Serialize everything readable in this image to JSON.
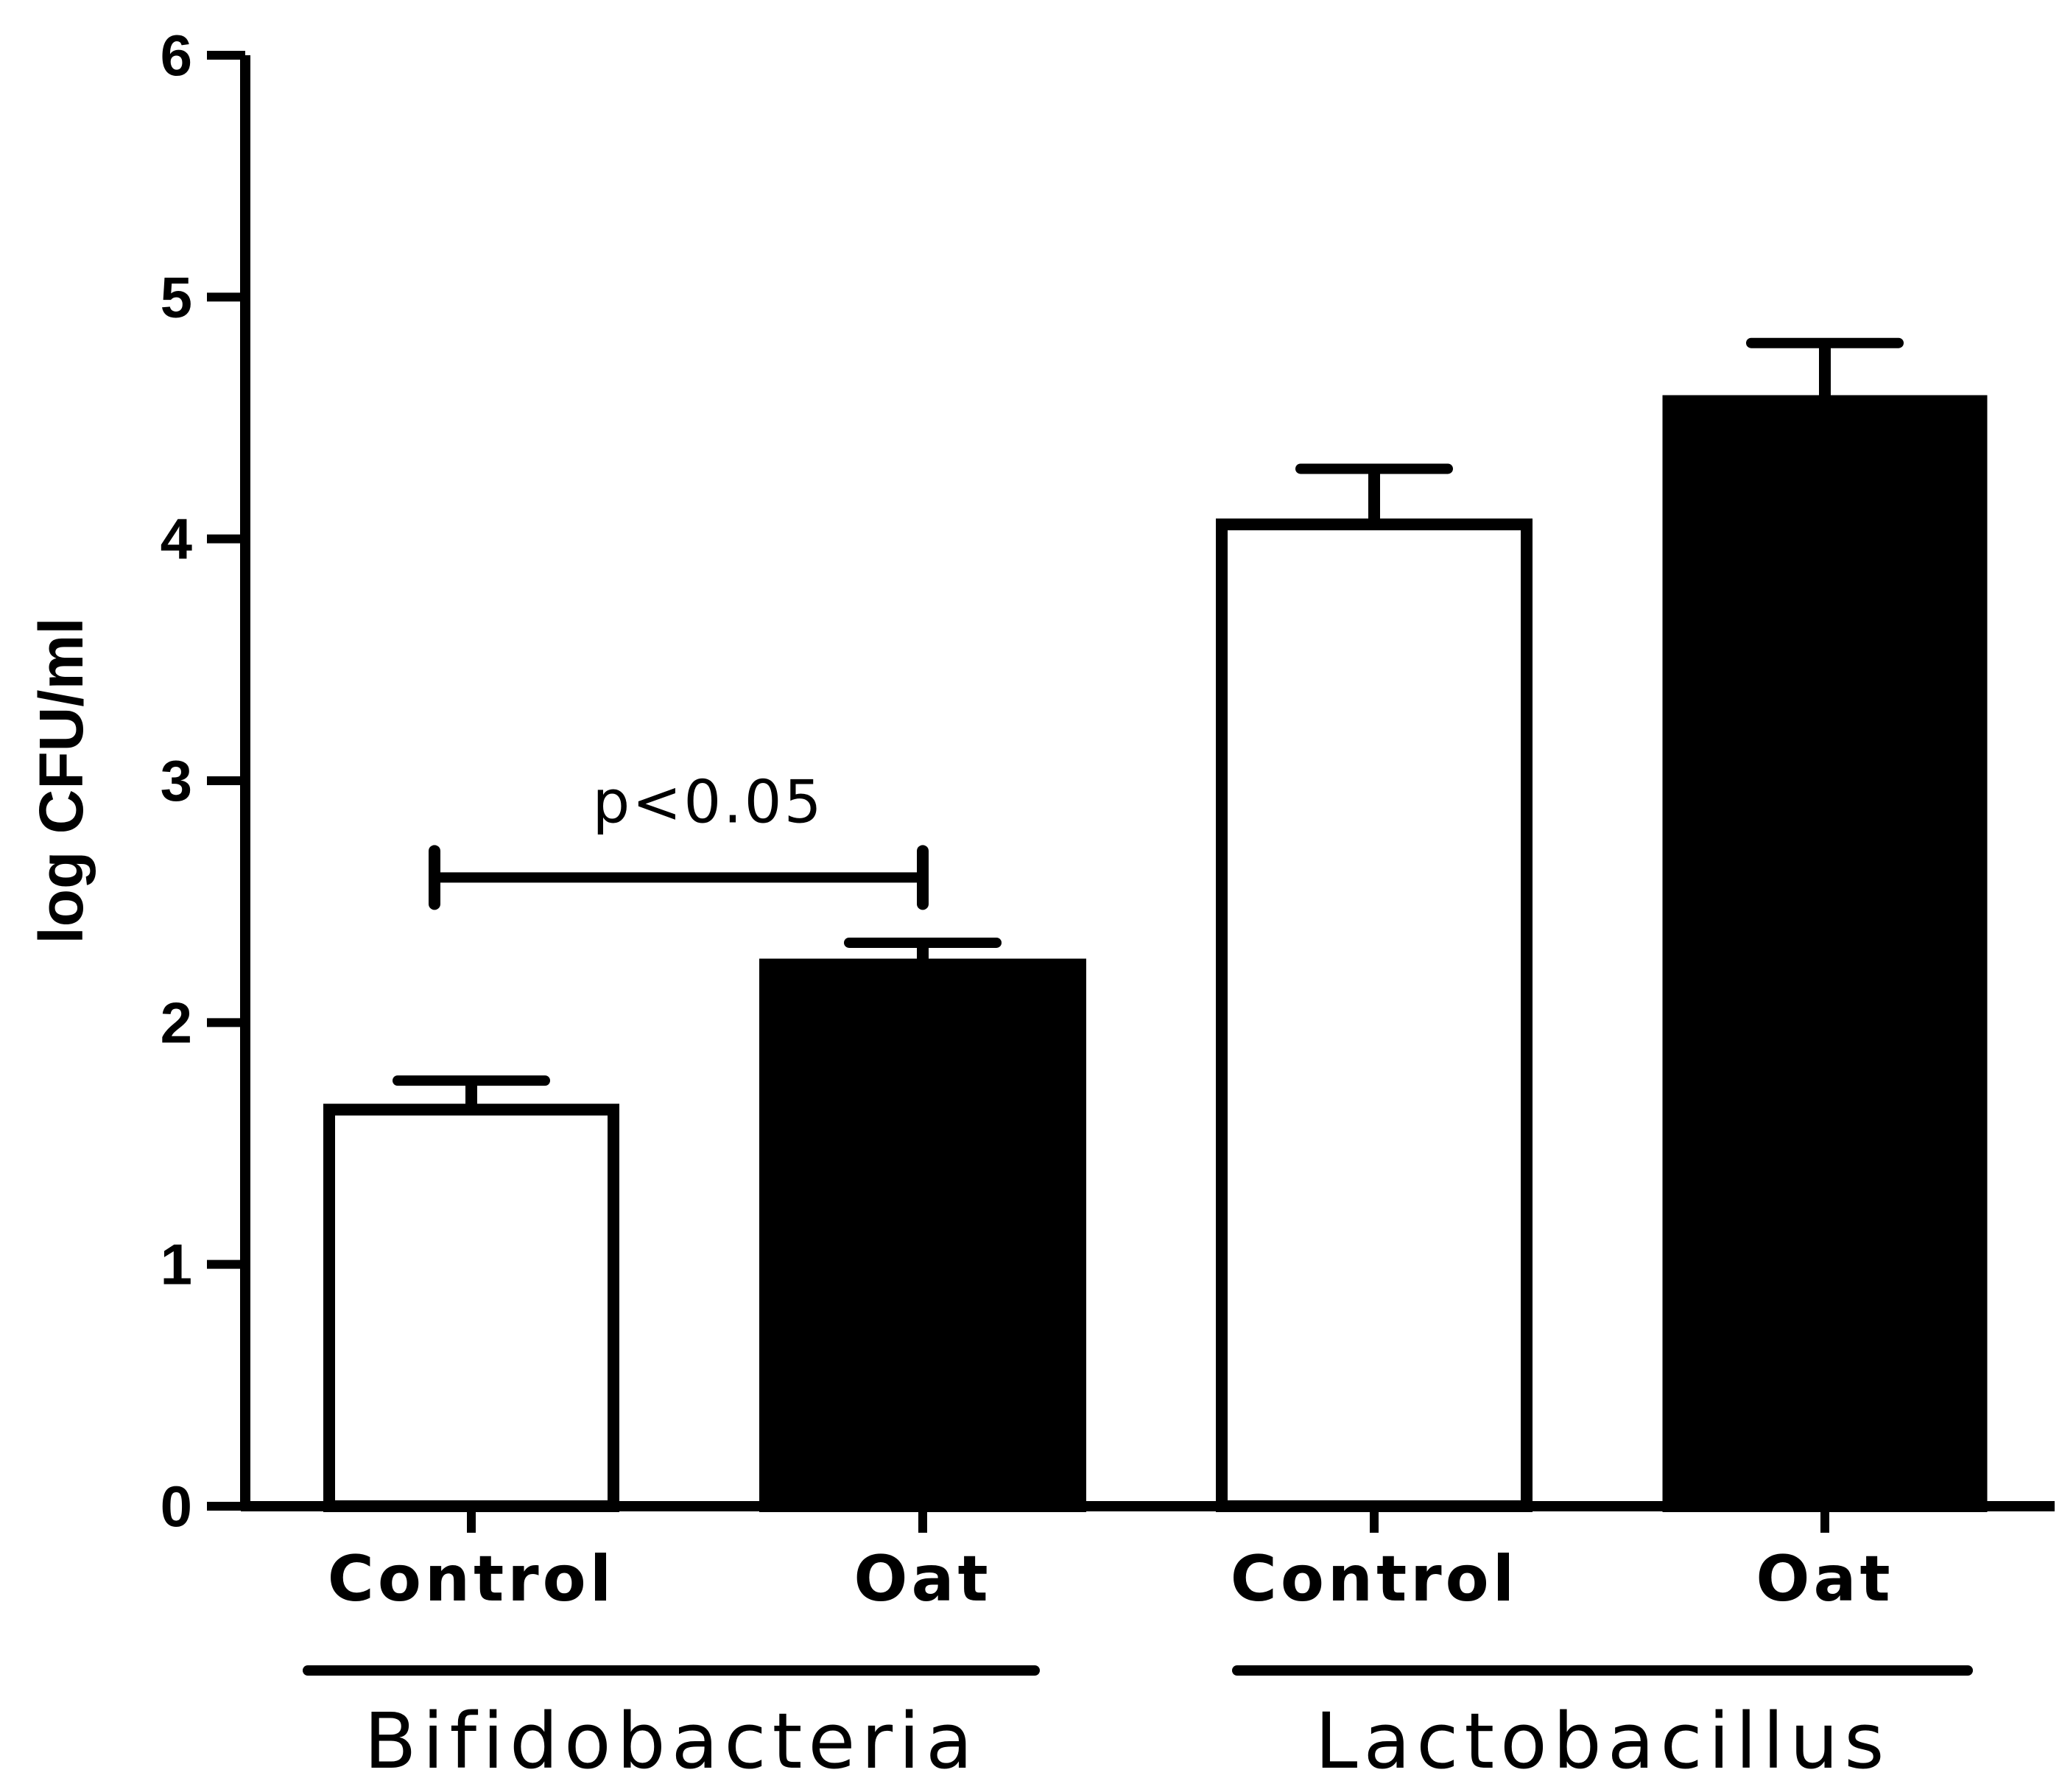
{
  "chart_data": {
    "type": "bar",
    "title": "",
    "xlabel": "",
    "ylabel": "log CFU/ml",
    "ylim": [
      0,
      6
    ],
    "y_ticks": [
      "0",
      "1",
      "2",
      "3",
      "4",
      "5",
      "6"
    ],
    "grid": false,
    "legend": "none",
    "groups": [
      {
        "name": "Bifidobacteria",
        "bars": [
          {
            "category": "Control",
            "value": 1.64,
            "error": 0.12,
            "fill": "white"
          },
          {
            "category": "Oat",
            "value": 2.24,
            "error": 0.09,
            "fill": "black"
          }
        ]
      },
      {
        "name": "Lactobacillus",
        "bars": [
          {
            "category": "Control",
            "value": 4.06,
            "error": 0.23,
            "fill": "white"
          },
          {
            "category": "Oat",
            "value": 4.57,
            "error": 0.24,
            "fill": "black"
          }
        ]
      }
    ],
    "annotations": [
      {
        "text": "p<0.05",
        "group": "Bifidobacteria",
        "from": "Control",
        "to": "Oat",
        "y": 2.6
      }
    ]
  },
  "colors": {
    "white": "#ffffff",
    "black": "#000000"
  }
}
